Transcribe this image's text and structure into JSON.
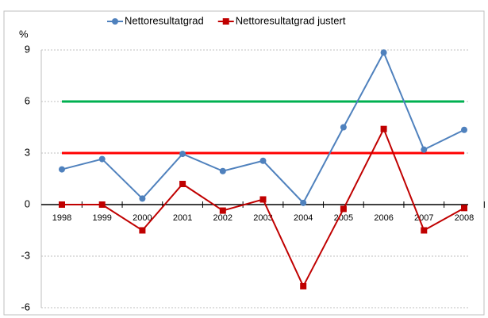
{
  "chart_data": {
    "type": "line",
    "y_label": "%",
    "categories": [
      "1998",
      "1999",
      "2000",
      "2001",
      "2002",
      "2003",
      "2004",
      "2005",
      "2006",
      "2007",
      "2008"
    ],
    "series": [
      {
        "name": "Nettoresultatgrad",
        "color": "#4f81bd",
        "marker": "circle",
        "values": [
          2.05,
          2.65,
          0.35,
          2.95,
          1.95,
          2.55,
          0.1,
          4.5,
          8.85,
          3.2,
          4.35
        ]
      },
      {
        "name": "Nettoresultatgrad justert",
        "color": "#c00000",
        "marker": "square",
        "values": [
          0,
          0,
          -1.5,
          1.2,
          -0.35,
          0.3,
          -4.75,
          -0.25,
          4.4,
          -1.5,
          -0.2
        ]
      }
    ],
    "reference_lines": [
      {
        "value": 6,
        "color": "#00b050"
      },
      {
        "value": 3,
        "color": "#ff0000"
      }
    ],
    "ylim": [
      -6,
      9
    ],
    "yticks": [
      -6,
      -3,
      0,
      3,
      6,
      9
    ],
    "grid": true,
    "legend": "top"
  }
}
